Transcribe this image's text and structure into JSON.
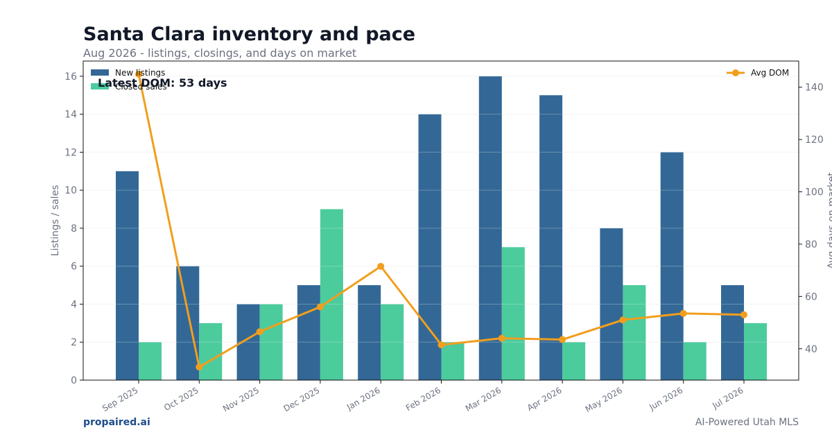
{
  "header": {
    "title": "Santa Clara inventory and pace",
    "subtitle": "Aug 2026 - listings, closings, and days on market"
  },
  "footer": {
    "brand": "propaired.ai",
    "tagline": "AI-Powered Utah MLS"
  },
  "annotation": "Latest DOM: 53 days",
  "colors": {
    "new_listings": "#336896",
    "closed_sales": "#4ccb9d",
    "avg_dom": "#f19e1d"
  },
  "chart_data": {
    "type": "bar",
    "categories": [
      "Sep 2025",
      "Oct 2025",
      "Nov 2025",
      "Dec 2025",
      "Jan 2026",
      "Feb 2026",
      "Mar 2026",
      "Apr 2026",
      "May 2026",
      "Jun 2026",
      "Jul 2026"
    ],
    "series": [
      {
        "name": "New listings",
        "type": "bar",
        "axis": "left",
        "values": [
          11,
          6,
          4,
          5,
          5,
          14,
          16,
          15,
          8,
          12,
          5
        ]
      },
      {
        "name": "Closed sales",
        "type": "bar",
        "axis": "left",
        "values": [
          2,
          3,
          4,
          9,
          4,
          2,
          7,
          2,
          5,
          2,
          3
        ]
      },
      {
        "name": "Avg DOM",
        "type": "line",
        "axis": "right",
        "values": [
          145,
          33,
          46.5,
          56,
          71.5,
          41.5,
          44,
          43.5,
          51,
          53.5,
          53
        ]
      }
    ],
    "ylabel": "Listings / sales",
    "y2label": "Avg days on market",
    "ylim": [
      0,
      16.8
    ],
    "y2lim": [
      28,
      150
    ],
    "yticks": [
      0,
      2,
      4,
      6,
      8,
      10,
      12,
      14,
      16
    ],
    "y2ticks": [
      40,
      60,
      80,
      100,
      120,
      140
    ],
    "legend_left": "top-left",
    "legend_right": "top-right",
    "grid": true
  }
}
